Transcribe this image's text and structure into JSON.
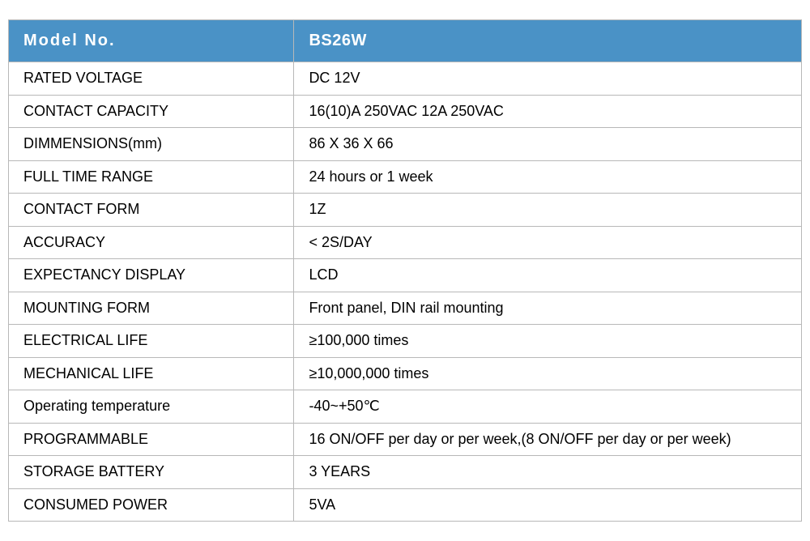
{
  "table": {
    "type": "table",
    "header_bg_color": "#4a92c6",
    "header_text_color": "#ffffff",
    "row_bg_color": "#ffffff",
    "cell_text_color": "#000000",
    "border_color": "#b8b8b8",
    "header_fontsize": 20,
    "cell_fontsize": 18,
    "header_letter_spacing": 2,
    "columns": [
      {
        "key": "label",
        "header": "Model No.",
        "width_pct": 36
      },
      {
        "key": "value",
        "header": "BS26W",
        "width_pct": 64
      }
    ],
    "rows": [
      {
        "label": "RATED VOLTAGE",
        "value": "DC 12V"
      },
      {
        "label": "CONTACT CAPACITY",
        "value": "16(10)A 250VAC   12A 250VAC"
      },
      {
        "label": "DIMMENSIONS(mm)",
        "value": "86 X 36 X 66"
      },
      {
        "label": "FULL TIME RANGE",
        "value": "24 hours or 1 week"
      },
      {
        "label": "CONTACT FORM",
        "value": "1Z"
      },
      {
        "label": "ACCURACY",
        "value": "< 2S/DAY"
      },
      {
        "label": "EXPECTANCY DISPLAY",
        "value": "LCD"
      },
      {
        "label": "MOUNTING FORM",
        "value": "Front panel, DIN rail mounting"
      },
      {
        "label": "ELECTRICAL LIFE",
        "value": "≥100,000 times"
      },
      {
        "label": "MECHANICAL LIFE",
        "value": "≥10,000,000 times"
      },
      {
        "label": "Operating temperature",
        "value": "-40~+50℃"
      },
      {
        "label": "PROGRAMMABLE",
        "value": "16 ON/OFF per day or per week,(8 ON/OFF per day or per week)"
      },
      {
        "label": "STORAGE BATTERY",
        "value": "3 YEARS"
      },
      {
        "label": "CONSUMED POWER",
        "value": "5VA"
      }
    ]
  }
}
